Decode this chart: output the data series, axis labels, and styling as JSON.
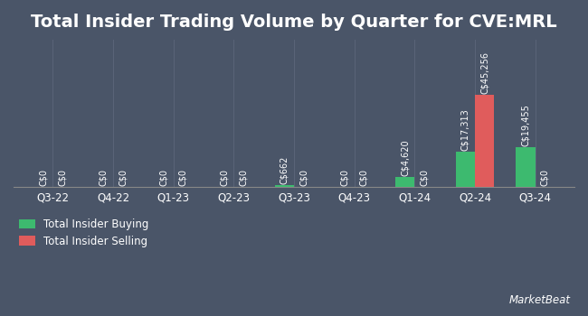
{
  "title": "Total Insider Trading Volume by Quarter for CVE:MRL",
  "quarters": [
    "Q3-22",
    "Q4-22",
    "Q1-23",
    "Q2-23",
    "Q3-23",
    "Q4-23",
    "Q1-24",
    "Q2-24",
    "Q3-24"
  ],
  "buying": [
    0,
    0,
    0,
    0,
    662,
    0,
    4620,
    17313,
    19455
  ],
  "selling": [
    0,
    0,
    0,
    0,
    0,
    0,
    0,
    45256,
    0
  ],
  "buy_color": "#3dba6f",
  "sell_color": "#e05c5c",
  "bg_color": "#4a5568",
  "text_color": "#ffffff",
  "grid_color": "#5a6478",
  "bar_width": 0.32,
  "title_fontsize": 14,
  "label_fontsize": 7,
  "tick_fontsize": 8.5,
  "legend_fontsize": 8.5
}
